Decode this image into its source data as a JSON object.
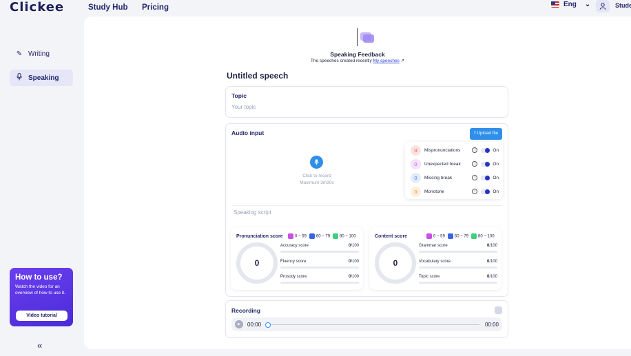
{
  "header": {
    "logo": "Clickee",
    "nav": [
      "Study Hub",
      "Pricing"
    ],
    "language": "Eng",
    "user_label": "Stude"
  },
  "sidebar": {
    "items": [
      {
        "label": "Writing",
        "icon": "pen-icon",
        "active": false
      },
      {
        "label": "Speaking",
        "icon": "microphone-icon",
        "active": true
      }
    ],
    "howto": {
      "title": "How to use?",
      "text": "Watch the video for an overview of how to use it.",
      "button": "Video tutorial"
    },
    "collapse": "«"
  },
  "hero": {
    "title": "Speaking Feedback",
    "subtitle": "The speeches created recently",
    "link": "My speeches",
    "link_arrow": "↗"
  },
  "speech": {
    "title": "Untitled speech",
    "topic_title": "Topic",
    "topic_placeholder": "Your topic"
  },
  "audio": {
    "title": "Audio input",
    "upload": "Upload file",
    "hint1": "Click to record",
    "hint2": "Maximum 3m30s",
    "script_placeholder": "Speaking script",
    "toggles": [
      {
        "count": "0",
        "label": "Mispronunciations",
        "state": "On",
        "color": "#fde1e1",
        "text_color": "#e04848"
      },
      {
        "count": "0",
        "label": "Unexpected break",
        "state": "On",
        "color": "#f6e2fb",
        "text_color": "#c455e0"
      },
      {
        "count": "0",
        "label": "Missing break",
        "state": "On",
        "color": "#e2ecfd",
        "text_color": "#4a7be0"
      },
      {
        "count": "0",
        "label": "Monotone",
        "state": "On",
        "color": "#fdeedd",
        "text_color": "#e08a30"
      }
    ]
  },
  "scores": {
    "legend": [
      {
        "label": "0 ~ 59",
        "color": "#c94fe6"
      },
      {
        "label": "60 ~ 79",
        "color": "#3a63e6"
      },
      {
        "label": "80 ~ 100",
        "color": "#3dcf7e"
      }
    ],
    "pronunciation": {
      "title": "Pronunciation score",
      "total": "0",
      "metrics": [
        {
          "label": "Accuracy score",
          "value": "0",
          "max": "/100"
        },
        {
          "label": "Fluency score",
          "value": "0",
          "max": "/100"
        },
        {
          "label": "Prosody score",
          "value": "0",
          "max": "/100"
        }
      ]
    },
    "content": {
      "title": "Content score",
      "total": "0",
      "metrics": [
        {
          "label": "Grammar score",
          "value": "0",
          "max": "/100"
        },
        {
          "label": "Vocabulary score",
          "value": "0",
          "max": "/100"
        },
        {
          "label": "Topic score",
          "value": "0",
          "max": "/100"
        }
      ]
    }
  },
  "recording": {
    "title": "Recording",
    "current": "00:00",
    "duration": "00:00"
  }
}
